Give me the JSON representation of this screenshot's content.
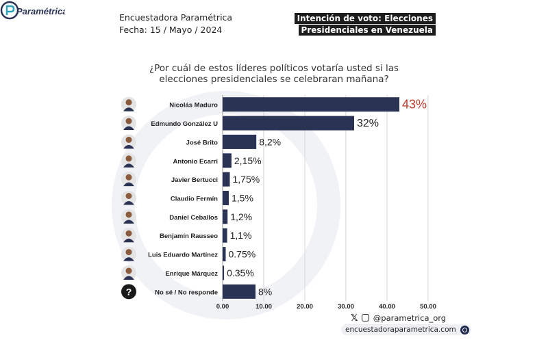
{
  "header": {
    "org": "Encuestadora Paramétrica",
    "date": "Fecha: 15 / Mayo / 2024",
    "logo_text": "Paramétrica",
    "banner_line1": "Intención de voto: Elecciones",
    "banner_line2": "Presidenciales en Venezuela"
  },
  "question": {
    "line1": "¿Por cuál de estos líderes políticos votaría usted si las",
    "line2": "elecciones presidenciales se celebraran mañana?"
  },
  "chart_data": {
    "type": "bar",
    "orientation": "horizontal",
    "categories": [
      "Nicolás Maduro",
      "Edmundo González U",
      "José Brito",
      "Antonio Ecarri",
      "Javier Bertucci",
      "Claudio Fermín",
      "Daniel Ceballos",
      "Benjamín Rausseo",
      "Luis Eduardo Martínez",
      "Enrique Márquez",
      "No sé / No responde"
    ],
    "values": [
      43,
      32,
      8.2,
      2.15,
      1.75,
      1.5,
      1.2,
      1.1,
      0.75,
      0.35,
      8
    ],
    "value_labels": [
      "43%",
      "32%",
      "8,2%",
      "2,15%",
      "1,75%",
      "1,5%",
      "1,2%",
      "1,1%",
      "0.75%",
      "0.35%",
      "8%"
    ],
    "xlim": [
      0,
      50
    ],
    "xticks": [
      "0.00",
      "10.00",
      "20.00",
      "30.00",
      "40.00",
      "50.00"
    ],
    "grid": true,
    "bar_color": "#2b3355",
    "highlight_color": "#c0392b"
  },
  "footer": {
    "social_handle": "@parametrica_org",
    "website": "encuestadoraparametrica.com"
  }
}
